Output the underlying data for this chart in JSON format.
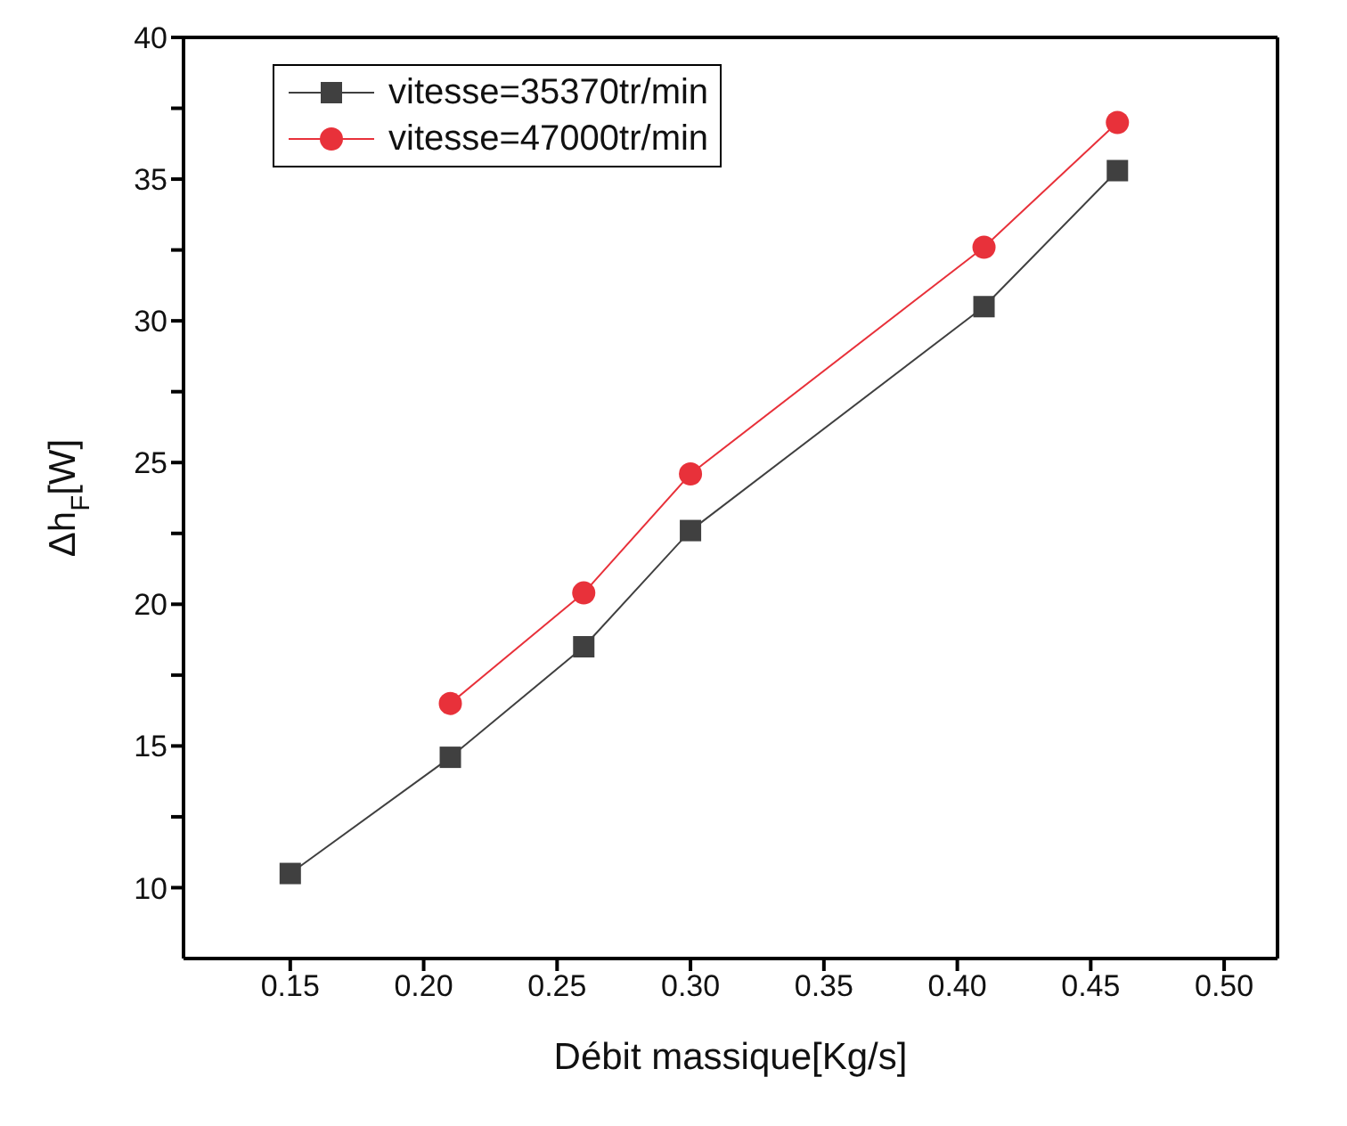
{
  "chart_data": {
    "type": "line",
    "xlabel": "Débit massique[Kg/s]",
    "ylabel": "Δh$_{F}$[W]",
    "xlim": [
      0.11,
      0.52
    ],
    "xticks": [
      {
        "value": 0.15,
        "label": "0.15"
      },
      {
        "value": 0.2,
        "label": "0.20"
      },
      {
        "value": 0.25,
        "label": "0.25"
      },
      {
        "value": 0.3,
        "label": "0.30"
      },
      {
        "value": 0.35,
        "label": "0.35"
      },
      {
        "value": 0.4,
        "label": "0.40"
      },
      {
        "value": 0.45,
        "label": "0.45"
      },
      {
        "value": 0.5,
        "label": "0.50"
      }
    ],
    "ylim": [
      7.5,
      40
    ],
    "yticks": [
      10,
      {
        "value": 12.5,
        "label": null
      },
      15,
      {
        "value": 17.5,
        "label": null
      },
      20,
      {
        "value": 22.5,
        "label": null
      },
      25,
      {
        "value": 27.5,
        "label": null
      },
      30,
      {
        "value": 32.5,
        "label": null
      },
      35,
      {
        "value": 37.5,
        "label": null
      },
      40
    ],
    "legend": "top left",
    "line_style": "solid",
    "series": [
      {
        "name": "vitesse=35370tr/min",
        "color": "#404040",
        "marker": "square",
        "x": [
          0.15,
          0.21,
          0.26,
          0.3,
          0.41,
          0.46
        ],
        "values": [
          10.5,
          14.6,
          18.5,
          22.6,
          30.5,
          35.3
        ]
      },
      {
        "name": "vitesse=47000tr/min",
        "color": "#e8313a",
        "marker": "circle",
        "x": [
          0.21,
          0.26,
          0.3,
          0.41,
          0.46
        ],
        "values": [
          16.5,
          20.4,
          24.6,
          32.6,
          37.0
        ]
      }
    ]
  }
}
